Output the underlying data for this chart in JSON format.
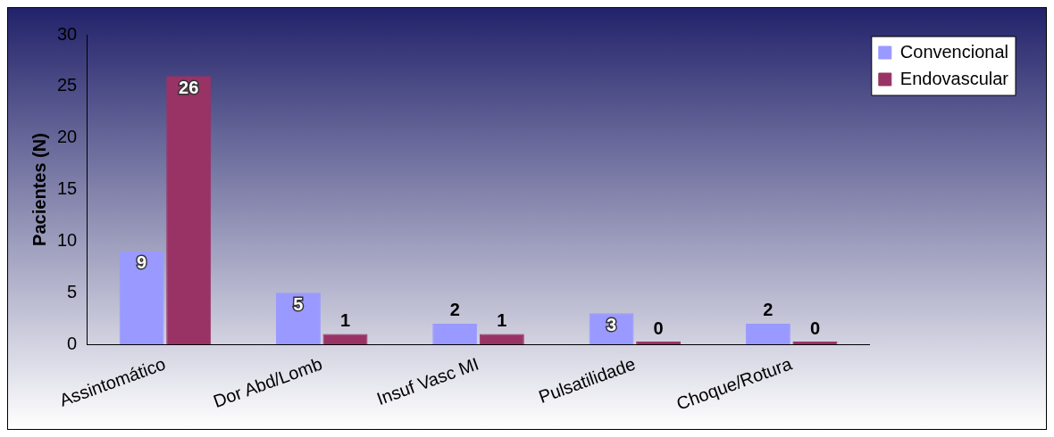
{
  "chart_data": {
    "type": "bar",
    "ylabel": "Pacientes (N)",
    "categories": [
      "Assintomático",
      "Dor Abd/Lomb",
      "Insuf Vasc MI",
      "Pulsatilidade",
      "Choque/Rotura"
    ],
    "series": [
      {
        "name": "Convencional",
        "color": "#9999ff",
        "values": [
          9,
          5,
          2,
          3,
          2
        ]
      },
      {
        "name": "Endovascular",
        "color": "#993366",
        "values": [
          26,
          1,
          1,
          0,
          0
        ]
      }
    ],
    "ylim": [
      0,
      30
    ],
    "yticks": [
      0,
      5,
      10,
      15,
      20,
      25,
      30
    ],
    "grid": false,
    "legend": "top right",
    "data_labels": true
  }
}
